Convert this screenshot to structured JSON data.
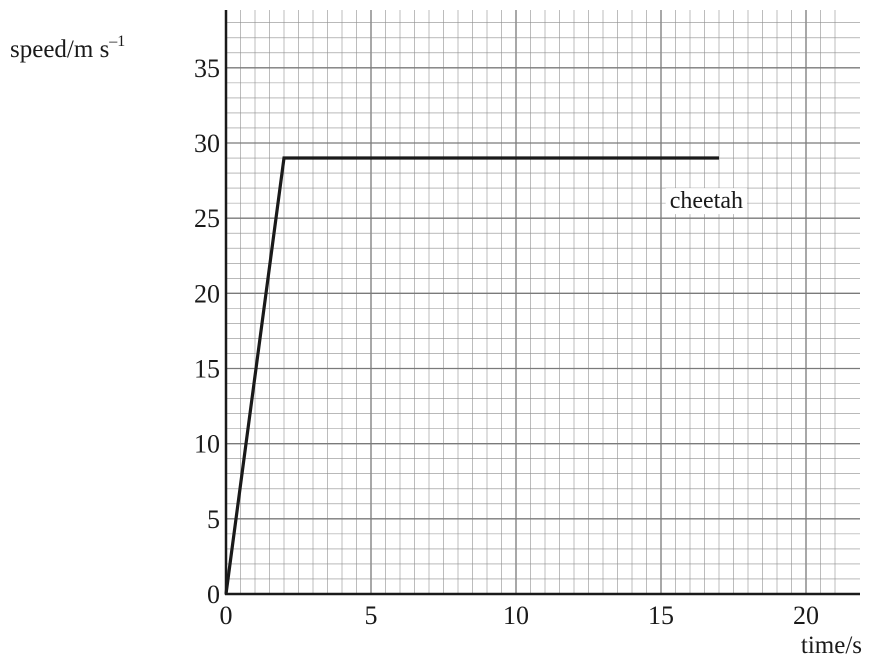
{
  "chart_data": {
    "type": "line",
    "xlabel": "time/s",
    "ylabel": {
      "base": "speed/m s",
      "superscript": "–1"
    },
    "xlim": [
      0,
      21
    ],
    "ylim": [
      0,
      38
    ],
    "x_ticks": [
      0,
      5,
      10,
      15,
      20
    ],
    "y_ticks": [
      0,
      5,
      10,
      15,
      20,
      25,
      30,
      35
    ],
    "x_tick_labels": [
      "0",
      "5",
      "10",
      "15",
      "20"
    ],
    "y_tick_labels": [
      "0",
      "5",
      "10",
      "15",
      "20",
      "25",
      "30",
      "35"
    ],
    "grid": {
      "on": true,
      "minor_step_x": 0.5,
      "minor_step_y": 1,
      "major_step_x": 5,
      "major_step_y": 5
    },
    "series": [
      {
        "name": "cheetah",
        "x": [
          0,
          2,
          17
        ],
        "y": [
          0,
          29,
          29
        ]
      }
    ],
    "annotations": [
      {
        "text": "cheetah",
        "x": 15.3,
        "y": 26.2
      }
    ],
    "colors": {
      "line": "#1a1a1a",
      "minor_grid": "#8f8f8f",
      "major_grid": "#7a7a7a",
      "axis": "#1a1a1a"
    }
  }
}
